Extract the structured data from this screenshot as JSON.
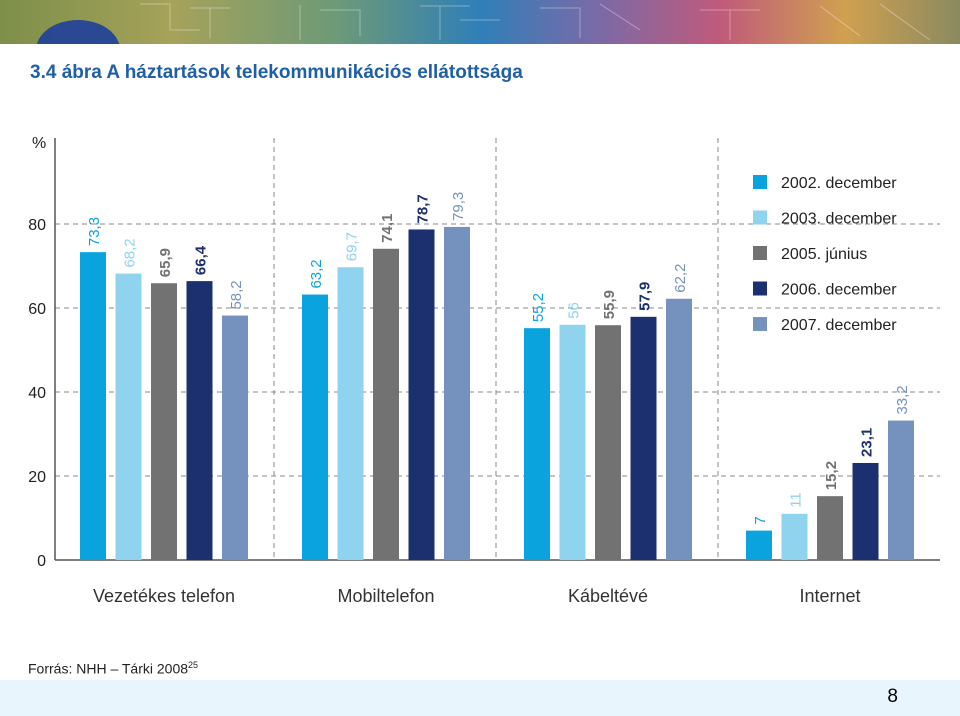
{
  "title": "3.4 ábra  A háztartások telekommunikációs ellátottsága",
  "source": {
    "text": "Forrás: NHH – Tárki 2008",
    "sup": "25"
  },
  "page_number": "8",
  "colors": {
    "title": "#1f5fa6",
    "series": [
      "#0aa3de",
      "#8fd3ef",
      "#727272",
      "#1c2f6e",
      "#7492bd"
    ]
  },
  "chart_data": {
    "type": "bar",
    "ylabel": "%",
    "ylim": [
      0,
      100
    ],
    "yticks": [
      "0",
      "20",
      "40",
      "60",
      "80"
    ],
    "grid": true,
    "legend_position": "top-right",
    "categories": [
      "Vezetékes telefon",
      "Mobiltelefon",
      "Kábeltévé",
      "Internet"
    ],
    "series": [
      {
        "name": "2002. december",
        "values": [
          73.3,
          63.2,
          55.2,
          7
        ],
        "labels": [
          "73,3",
          "63,2",
          "55,2",
          "7"
        ]
      },
      {
        "name": "2003. december",
        "values": [
          68.2,
          69.7,
          56,
          11
        ],
        "labels": [
          "68,2",
          "69,7",
          "56",
          "11"
        ]
      },
      {
        "name": "2005. június",
        "values": [
          65.9,
          74.1,
          55.9,
          15.2
        ],
        "labels": [
          "65,9",
          "74,1",
          "55,9",
          "15,2"
        ]
      },
      {
        "name": "2006. december",
        "values": [
          66.4,
          78.7,
          57.9,
          23.1
        ],
        "labels": [
          "66,4",
          "78,7",
          "57,9",
          "23,1"
        ]
      },
      {
        "name": "2007. december",
        "values": [
          58.2,
          79.3,
          62.2,
          33.2
        ],
        "labels": [
          "58,2",
          "79,3",
          "62,2",
          "33,2"
        ]
      }
    ]
  }
}
